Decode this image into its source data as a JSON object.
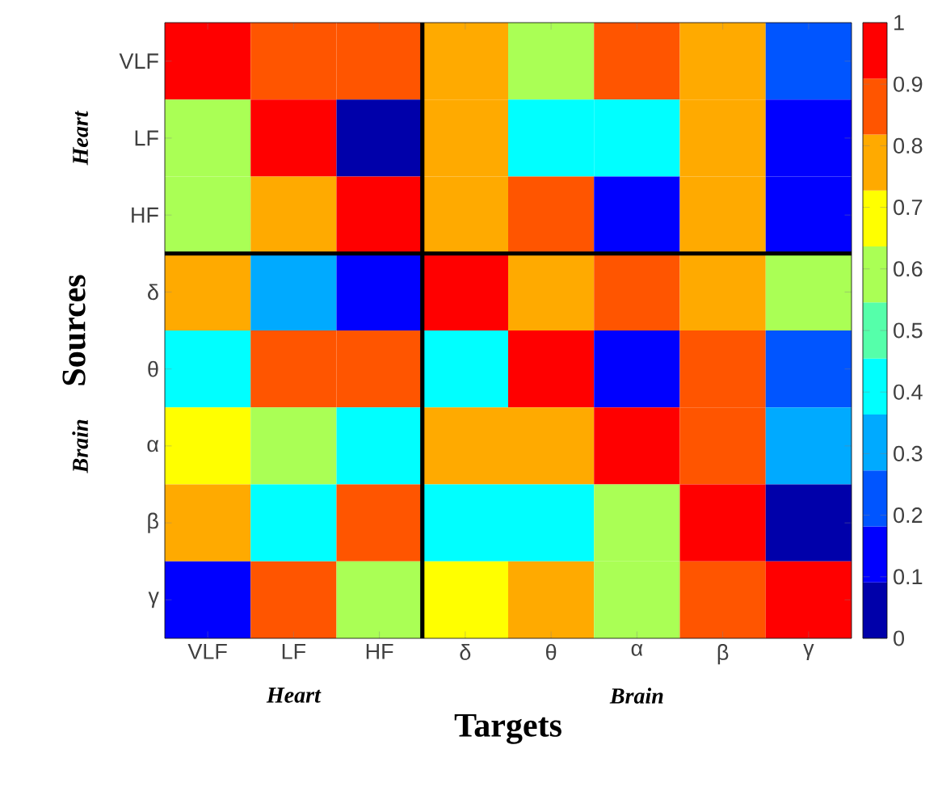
{
  "chart_data": {
    "type": "heatmap",
    "xlabel": "Targets",
    "ylabel": "Sources",
    "categories": [
      "VLF",
      "LF",
      "HF",
      "δ",
      "θ",
      "α",
      "β",
      "γ"
    ],
    "y_categories": [
      "VLF",
      "LF",
      "HF",
      "δ",
      "θ",
      "α",
      "β",
      "γ"
    ],
    "cells": [
      [
        0.95,
        0.86,
        0.86,
        0.77,
        0.59,
        0.86,
        0.77,
        0.23
      ],
      [
        0.59,
        0.95,
        0.05,
        0.77,
        0.41,
        0.41,
        0.77,
        0.14
      ],
      [
        0.59,
        0.77,
        0.95,
        0.77,
        0.86,
        0.14,
        0.77,
        0.14
      ],
      [
        0.77,
        0.32,
        0.14,
        0.95,
        0.77,
        0.86,
        0.77,
        0.59
      ],
      [
        0.41,
        0.86,
        0.86,
        0.41,
        0.95,
        0.14,
        0.86,
        0.23
      ],
      [
        0.68,
        0.59,
        0.41,
        0.77,
        0.77,
        0.95,
        0.86,
        0.32
      ],
      [
        0.77,
        0.41,
        0.86,
        0.41,
        0.41,
        0.59,
        0.95,
        0.05
      ],
      [
        0.14,
        0.86,
        0.59,
        0.68,
        0.77,
        0.59,
        0.86,
        0.95
      ]
    ],
    "clim": [
      0,
      1
    ],
    "cticks": [
      0,
      0.1,
      0.2,
      0.3,
      0.4,
      0.5,
      0.6,
      0.7,
      0.8,
      0.9,
      1
    ],
    "annotations": [
      "Heart",
      "Brain",
      "Heart",
      "Brain"
    ]
  }
}
